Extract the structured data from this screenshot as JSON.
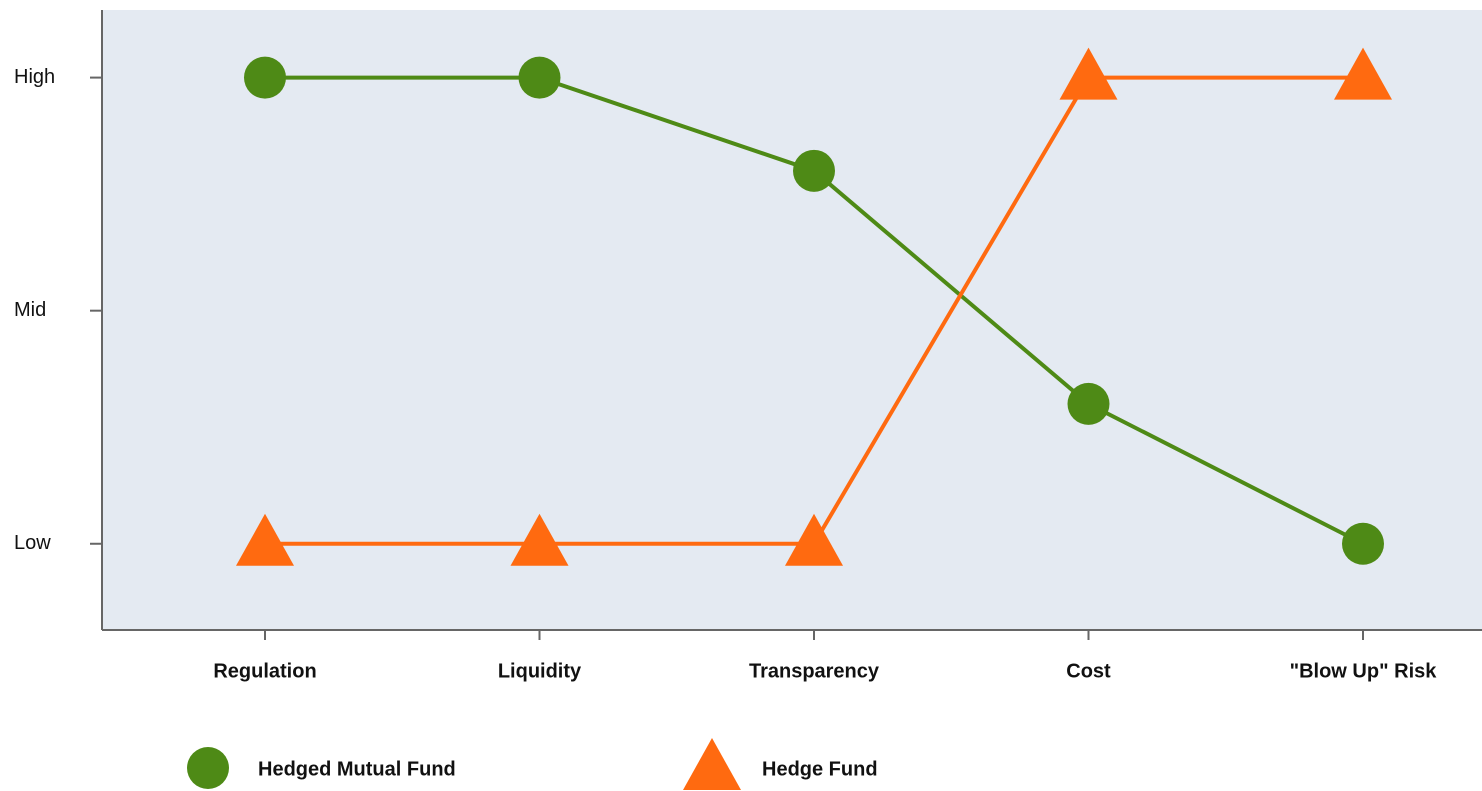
{
  "chart_data": {
    "type": "line",
    "categories": [
      "Regulation",
      "Liquidity",
      "Transparency",
      "Cost",
      "\"Blow Up\" Risk"
    ],
    "series": [
      {
        "name": "Hedged Mutual Fund",
        "color": "#4e8a16",
        "marker": "circle",
        "values": [
          2,
          2,
          1.6,
          0.6,
          0
        ]
      },
      {
        "name": "Hedge Fund",
        "color": "#ff6a10",
        "marker": "triangle",
        "values": [
          0,
          0,
          0,
          2,
          2
        ]
      }
    ],
    "ylim": [
      -0.37,
      2.29
    ],
    "yticks": [
      {
        "value": 0,
        "label": "Low"
      },
      {
        "value": 1,
        "label": "Mid"
      },
      {
        "value": 2,
        "label": "High"
      }
    ]
  }
}
